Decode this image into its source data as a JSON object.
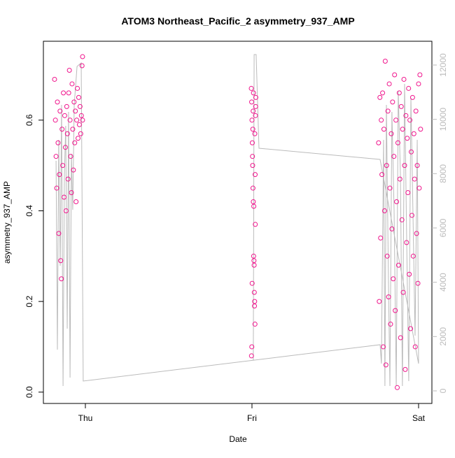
{
  "chart_data": {
    "type": "scatter",
    "title": "ATOM3 Northeast_Pacific_2 asymmetry_937_AMP",
    "x_label": "Date",
    "y_label": "asymmetry_937_AMP",
    "xlim": [
      -0.252,
      2.08
    ],
    "ylim": [
      -0.025,
      0.774
    ],
    "y2lim": [
      -464,
      12876
    ],
    "xticks": [
      {
        "value": 0,
        "label": "Thu"
      },
      {
        "value": 1,
        "label": "Fri"
      },
      {
        "value": 2,
        "label": "Sat"
      }
    ],
    "yticks": [
      {
        "value": 0,
        "label": "0.0"
      },
      0.2,
      0.4,
      0.6
    ],
    "y2ticks": [
      0,
      2000,
      4000,
      6000,
      8000,
      10000,
      12000
    ],
    "series": [
      {
        "type": "scatter",
        "color": "#f0148c",
        "x": [
          -0.185,
          -0.18,
          -0.176,
          -0.172,
          -0.168,
          -0.164,
          -0.16,
          -0.156,
          -0.152,
          -0.148,
          -0.144,
          -0.14,
          -0.136,
          -0.132,
          -0.128,
          -0.124,
          -0.12,
          -0.116,
          -0.112,
          -0.108,
          -0.104,
          -0.1,
          -0.096,
          -0.092,
          -0.088,
          -0.084,
          -0.08,
          -0.076,
          -0.072,
          -0.068,
          -0.064,
          -0.06,
          -0.056,
          -0.052,
          -0.048,
          -0.044,
          -0.04,
          -0.036,
          -0.032,
          -0.028,
          -0.024,
          -0.02,
          -0.017,
          -0.017,
          0.996,
          0.998,
          1.0,
          1.002,
          1.004,
          1.006,
          1.008,
          1.01,
          1.012,
          1.014,
          1.016,
          1.018,
          1.02,
          1.022,
          0.997,
          0.999,
          1.001,
          1.003,
          1.005,
          1.007,
          1.009,
          1.011,
          1.013,
          1.015,
          1.017,
          1.019,
          1.021,
          1.023,
          1.76,
          1.764,
          1.768,
          1.772,
          1.776,
          1.78,
          1.784,
          1.788,
          1.792,
          1.796,
          1.8,
          1.804,
          1.808,
          1.812,
          1.816,
          1.82,
          1.824,
          1.828,
          1.832,
          1.836,
          1.84,
          1.844,
          1.848,
          1.852,
          1.856,
          1.86,
          1.864,
          1.868,
          1.872,
          1.876,
          1.88,
          1.884,
          1.888,
          1.892,
          1.896,
          1.9,
          1.904,
          1.908,
          1.912,
          1.916,
          1.92,
          1.924,
          1.928,
          1.932,
          1.936,
          1.94,
          1.944,
          1.948,
          1.952,
          1.956,
          1.96,
          1.964,
          1.968,
          1.972,
          1.976,
          1.98,
          1.984,
          1.988,
          1.992,
          1.996,
          2.0,
          2.004,
          2.008,
          2.012
        ],
        "values": [
          0.69,
          0.6,
          0.52,
          0.45,
          0.64,
          0.55,
          0.35,
          0.48,
          0.62,
          0.29,
          0.25,
          0.58,
          0.5,
          0.66,
          0.43,
          0.61,
          0.54,
          0.4,
          0.63,
          0.57,
          0.47,
          0.66,
          0.71,
          0.6,
          0.52,
          0.44,
          0.68,
          0.58,
          0.49,
          0.64,
          0.55,
          0.62,
          0.42,
          0.6,
          0.67,
          0.56,
          0.65,
          0.59,
          0.63,
          0.57,
          0.61,
          0.72,
          0.74,
          0.6,
          0.67,
          0.64,
          0.6,
          0.55,
          0.5,
          0.45,
          0.42,
          0.3,
          0.29,
          0.22,
          0.2,
          0.15,
          0.37,
          0.63,
          0.08,
          0.1,
          0.24,
          0.52,
          0.58,
          0.62,
          0.66,
          0.41,
          0.28,
          0.19,
          0.57,
          0.48,
          0.61,
          0.65,
          0.55,
          0.2,
          0.65,
          0.34,
          0.6,
          0.48,
          0.66,
          0.1,
          0.58,
          0.4,
          0.73,
          0.06,
          0.5,
          0.3,
          0.62,
          0.21,
          0.68,
          0.45,
          0.15,
          0.57,
          0.36,
          0.64,
          0.25,
          0.52,
          0.7,
          0.18,
          0.6,
          0.42,
          0.01,
          0.55,
          0.28,
          0.66,
          0.47,
          0.12,
          0.63,
          0.38,
          0.58,
          0.22,
          0.69,
          0.5,
          0.05,
          0.61,
          0.33,
          0.56,
          0.44,
          0.67,
          0.26,
          0.6,
          0.14,
          0.53,
          0.39,
          0.65,
          0.3,
          0.57,
          0.47,
          0.1,
          0.62,
          0.35,
          0.5,
          0.24,
          0.68,
          0.45,
          0.7,
          0.58
        ]
      },
      {
        "type": "line",
        "axis": "y2",
        "color": "#bbbbbb",
        "x": [
          -0.176,
          -0.168,
          -0.16,
          -0.151,
          -0.143,
          -0.134,
          -0.126,
          -0.118,
          -0.109,
          -0.101,
          -0.092,
          -0.084,
          -0.076,
          -0.067,
          -0.05,
          -0.025,
          -0.013,
          1.769,
          1.777,
          1.79,
          1.798,
          1.807,
          1.819,
          1.828,
          1.84,
          1.853,
          1.866,
          1.878,
          1.891,
          1.903,
          1.916,
          1.929,
          1.941,
          1.954,
          1.966,
          1.979,
          1.992,
          2.0,
          1.769,
          1.042,
          1.025,
          1.013,
          1.008
        ],
        "values": [
          8473,
          1519,
          9245,
          4610,
          10533,
          180,
          7958,
          9760,
          2292,
          10276,
          489,
          8730,
          6670,
          10533,
          11950,
          12078,
          361,
          1700,
          1004,
          9245,
          180,
          10533,
          4095,
          180,
          10276,
          6670,
          180,
          11048,
          7958,
          180,
          11306,
          5382,
          361,
          10791,
          6670,
          2034,
          9245,
          1004,
          8524,
          8936,
          12387,
          12387,
          1133
        ]
      }
    ]
  }
}
